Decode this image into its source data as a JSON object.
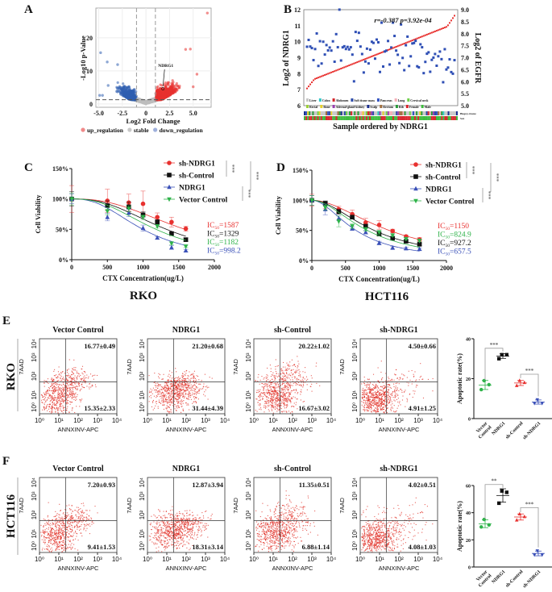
{
  "panel_labels": {
    "A": "A",
    "B": "B",
    "C": "C",
    "D": "D",
    "E": "E",
    "F": "F"
  },
  "row_labels": {
    "E": "RKO",
    "F": "HCT116"
  },
  "chart_data": [
    {
      "type": "scatter",
      "panel": "A",
      "xlabel": "Log2 Fold Change",
      "ylabel": "-Log10 p-Value",
      "xlim": [
        -5.3,
        6.9
      ],
      "ylim": [
        -1,
        29
      ],
      "xticks": [
        -5,
        -2.5,
        0,
        2.5,
        5
      ],
      "xtick_labels": [
        "-5.0",
        "-2.5",
        "0",
        "2.5",
        "5.0"
      ],
      "yticks": [
        0,
        10,
        20
      ],
      "ytick_labels": [
        "0",
        "10",
        "20"
      ],
      "grid": true,
      "thresholds": {
        "log2fc": [
          -1,
          1
        ],
        "neg_log10_p": 1.3
      },
      "annotation": {
        "label": "NDRG1",
        "x": 1.8,
        "y": 4.6
      },
      "legend": [
        {
          "label": "up_regulation",
          "color": "#f08a8a"
        },
        {
          "label": "stable",
          "color": "#c8c8c8"
        },
        {
          "label": "down_regulation",
          "color": "#9fb0dc"
        }
      ],
      "legend_placement": "bottom",
      "series_colors": {
        "up": "#e8312f",
        "stable": "#bdbdbd",
        "down": "#2f5fb0"
      },
      "outlier_points": [
        [
          6.5,
          27.5
        ],
        [
          4.7,
          16.6
        ],
        [
          4.2,
          16.5
        ],
        [
          5.4,
          9
        ],
        [
          5.0,
          5.2
        ],
        [
          -4.8,
          15.5
        ],
        [
          -4.1,
          12.7
        ],
        [
          -3.0,
          11.9
        ],
        [
          -4.6,
          2.6
        ],
        [
          -4.9,
          2.6
        ],
        [
          -4.0,
          5.6
        ]
      ]
    },
    {
      "type": "scatter",
      "panel": "B",
      "xlabel": "Sample ordered by NDRG1",
      "ylabel_left": "Log2 of NDRG1",
      "ylabel_right": "Log2 of EGFR",
      "ylim_left": [
        6,
        12
      ],
      "ylim_right": [
        5,
        9
      ],
      "yticks_left": [
        "6",
        "7",
        "8",
        "9",
        "10",
        "11",
        "12"
      ],
      "yticks_right": [
        "5.0",
        "5.5",
        "6.0",
        "6.5",
        "7.0",
        "7.5",
        "8.0",
        "8.5",
        "9.0"
      ],
      "annotation": "r=-0.387 p=3.92e-04",
      "series_colors": {
        "NDRG1": "#e8312f",
        "EGFR": "#2f4fb5"
      },
      "ndrg1_range": [
        6.9,
        11.7
      ],
      "track_labels": [
        "Biopsy-tissue",
        "Sex"
      ],
      "legend": [
        {
          "label": "Liver",
          "color": "#c8c8c8"
        },
        {
          "label": "Colon",
          "color": "#35c6c6"
        },
        {
          "label": "Abdomen",
          "color": "#d4262c"
        },
        {
          "label": "Soft tissue mass",
          "color": "#2b4aa8"
        },
        {
          "label": "Pancreas",
          "color": "#3555c0"
        },
        {
          "label": "Lung",
          "color": "#f4b0b8"
        },
        {
          "label": "Cervical neck",
          "color": "#6fd04a"
        },
        {
          "label": "Rectal",
          "color": "#9ccf3a"
        },
        {
          "label": "Bone",
          "color": "#e6d02a"
        },
        {
          "label": "Adrenal-gland-kidney",
          "color": "#9a3fb0"
        },
        {
          "label": "Scalp",
          "color": "#1c2f8f"
        },
        {
          "label": "Rectum",
          "color": "#a07040"
        },
        {
          "label": "Rib",
          "color": "#2a9a3a"
        },
        {
          "label": "Female",
          "color": "#d9262c"
        },
        {
          "label": "Male",
          "color": "#3dbb3d"
        }
      ]
    },
    {
      "type": "line",
      "panel": "C",
      "title": "RKO",
      "xlabel": "CTX Concentration(ug/L)",
      "ylabel": "Cell Viability",
      "xlim": [
        0,
        2000
      ],
      "ylim": [
        0,
        150
      ],
      "xticks": [
        "0",
        "500",
        "1000",
        "1500",
        "2000"
      ],
      "yticks": [
        "0%",
        "50%",
        "100%",
        "150%"
      ],
      "x": [
        0,
        500,
        800,
        1000,
        1200,
        1400,
        1600
      ],
      "series": [
        {
          "name": "sh-NDRG1",
          "color": "#e8312f",
          "marker": "circle",
          "values": [
            100,
            97,
            94,
            92,
            70,
            62,
            51
          ],
          "errors": [
            22,
            19,
            14,
            21,
            7,
            8,
            4
          ],
          "ic50": "1587"
        },
        {
          "name": "sh-Control",
          "color": "#111111",
          "marker": "square",
          "values": [
            100,
            89,
            87,
            74,
            62,
            43,
            33
          ],
          "errors": [
            12,
            8,
            8,
            5,
            4,
            2,
            3
          ],
          "ic50": "1329"
        },
        {
          "name": "NDRG1",
          "color": "#3a50b8",
          "marker": "triangle-up",
          "values": [
            100,
            70,
            77,
            52,
            36,
            20,
            15
          ],
          "errors": [
            8,
            6,
            6,
            5,
            2,
            3,
            2
          ],
          "ic50": "998.2"
        },
        {
          "name": "Vector Control",
          "color": "#2fb34a",
          "marker": "triangle-down",
          "values": [
            100,
            80,
            84,
            70,
            55,
            27,
            22
          ],
          "errors": [
            10,
            6,
            5,
            4,
            3,
            2,
            2
          ],
          "ic50": "1182"
        }
      ],
      "ic50_order": [
        0,
        1,
        3,
        2
      ],
      "ic50_prefix": "IC",
      "ic50_sub": "50",
      "significance": [
        {
          "pair": [
            "sh-NDRG1",
            "sh-Control"
          ],
          "label": "***"
        },
        {
          "pair": [
            "NDRG1",
            "Vector Control"
          ],
          "label": "***"
        },
        {
          "pair": [
            "sh groups",
            "overexpression groups"
          ],
          "label": "***"
        }
      ],
      "legend_placement": "top-right"
    },
    {
      "type": "line",
      "panel": "D",
      "title": "HCT116",
      "xlabel": "CTX Concentration(ug/L)",
      "ylabel": "Cell Viability",
      "xlim": [
        0,
        2000
      ],
      "ylim": [
        0,
        150
      ],
      "xticks": [
        "0",
        "500",
        "1000",
        "1500",
        "2000"
      ],
      "yticks": [
        "0%",
        "50%",
        "100%",
        "150%"
      ],
      "x": [
        0,
        200,
        400,
        600,
        800,
        1000,
        1200,
        1400,
        1600
      ],
      "series": [
        {
          "name": "sh-NDRG1",
          "color": "#e8312f",
          "marker": "circle",
          "values": [
            100,
            92,
            85,
            77,
            63,
            59,
            49,
            40,
            35
          ],
          "errors": [
            10,
            6,
            5,
            7,
            7,
            7,
            3,
            2,
            3
          ],
          "ic50": "1150"
        },
        {
          "name": "sh-Control",
          "color": "#111111",
          "marker": "square",
          "values": [
            100,
            95,
            81,
            72,
            57,
            44,
            37,
            32,
            27
          ],
          "errors": [
            8,
            4,
            4,
            3,
            3,
            3,
            3,
            2,
            2
          ],
          "ic50": "927.2"
        },
        {
          "name": "NDRG1",
          "color": "#3a50b8",
          "marker": "triangle-up",
          "values": [
            100,
            85,
            70,
            53,
            47,
            29,
            21,
            20,
            19
          ],
          "errors": [
            8,
            9,
            4,
            3,
            3,
            3,
            2,
            2,
            2
          ],
          "ic50": "657.5"
        },
        {
          "name": "Vector Control",
          "color": "#2fb34a",
          "marker": "triangle-down",
          "values": [
            100,
            88,
            65,
            57,
            52,
            47,
            42,
            36,
            33
          ],
          "errors": [
            8,
            4,
            9,
            4,
            3,
            3,
            2,
            2,
            2
          ],
          "ic50": "824.9"
        }
      ],
      "ic50_order": [
        0,
        3,
        1,
        2
      ],
      "ic50_prefix": "IC",
      "ic50_sub": "50",
      "significance": [
        {
          "pair": [
            "sh-NDRG1",
            "sh-Control"
          ],
          "label": "***"
        },
        {
          "pair": [
            "NDRG1",
            "Vector Control"
          ],
          "label": "***"
        },
        {
          "pair": [
            "sh groups",
            "overexpression groups"
          ],
          "label": "***"
        }
      ],
      "legend_placement": "top-right"
    },
    {
      "type": "scatter",
      "panel": "E",
      "kind": "flow-cytometry",
      "xlabel": "ANNXINV-APC",
      "ylabel": "7AAD",
      "ticks": [
        "10⁰",
        "10¹",
        "10²",
        "10³",
        "10⁴"
      ],
      "plots": [
        {
          "title": "Vector Control",
          "upper_right": "16.77±0.49",
          "lower_right": "15.35±2.33"
        },
        {
          "title": "NDRG1",
          "upper_right": "21.20±0.68",
          "lower_right": "31.44±4.39"
        },
        {
          "title": "sh-Control",
          "upper_right": "20.22±1.02",
          "lower_right": "16.67±3.02"
        },
        {
          "title": "sh-NDRG1",
          "upper_right": "4.50±0.66",
          "lower_right": "4.91±1.25"
        }
      ]
    },
    {
      "type": "scatter",
      "panel": "E",
      "kind": "dot-plot",
      "ylabel": "Apoptotic rate(%)",
      "ylim": [
        0,
        40
      ],
      "yticks": [
        "0",
        "20",
        "40"
      ],
      "categories": [
        "Vector Control",
        "NDRG1",
        "sh-Control",
        "sh-NDRG1"
      ],
      "category_labels": [
        [
          "Vector",
          "Control"
        ],
        [
          "NDRG1"
        ],
        [
          "sh-Control"
        ],
        [
          "sh-NDRG1"
        ]
      ],
      "colors": [
        "#2fb34a",
        "#111111",
        "#e8312f",
        "#3a50b8"
      ],
      "markers": [
        "circle",
        "square",
        "triangle-up",
        "triangle-down"
      ],
      "values": [
        [
          19,
          17,
          14.5
        ],
        [
          32,
          32,
          30
        ],
        [
          19,
          18,
          16.5
        ],
        [
          9.5,
          7.7,
          7.7
        ]
      ],
      "significance": [
        {
          "pair": [
            0,
            1
          ],
          "label": "***"
        },
        {
          "pair": [
            2,
            3
          ],
          "label": "***"
        }
      ]
    },
    {
      "type": "scatter",
      "panel": "F",
      "kind": "flow-cytometry",
      "xlabel": "ANNXINV-APC",
      "ylabel": "7AAD",
      "ticks": [
        "10⁰",
        "10¹",
        "10²",
        "10³",
        "10⁴"
      ],
      "plots": [
        {
          "title": "Vector Control",
          "upper_right": "7.20±0.93",
          "lower_right": "9.41±1.53"
        },
        {
          "title": "NDRG1",
          "upper_right": "12.87±3.94",
          "lower_right": "18.31±3.14"
        },
        {
          "title": "sh-Control",
          "upper_right": "11.35±0.51",
          "lower_right": "6.88±1.14"
        },
        {
          "title": "sh-NDRG1",
          "upper_right": "4.02±0.51",
          "lower_right": "4.08±1.03"
        }
      ]
    },
    {
      "type": "scatter",
      "panel": "F",
      "kind": "dot-plot",
      "ylabel": "Apoptotic rate(%)",
      "ylim": [
        0,
        60
      ],
      "yticks": [
        "0",
        "20",
        "40",
        "60"
      ],
      "categories": [
        "Vector Control",
        "NDRG1",
        "sh-Control",
        "sh-NDRG1"
      ],
      "category_labels": [
        [
          "Vector",
          "Control"
        ],
        [
          "NDRG1"
        ],
        [
          "sh-Control"
        ],
        [
          "sh-NDRG1"
        ]
      ],
      "colors": [
        "#2fb34a",
        "#111111",
        "#e8312f",
        "#3a50b8"
      ],
      "markers": [
        "circle",
        "square",
        "triangle-up",
        "triangle-down"
      ],
      "values": [
        [
          35,
          31,
          29.5
        ],
        [
          56,
          55,
          47
        ],
        [
          39,
          37,
          34.5
        ],
        [
          12,
          9,
          9
        ]
      ],
      "significance": [
        {
          "pair": [
            0,
            1
          ],
          "label": "**"
        },
        {
          "pair": [
            2,
            3
          ],
          "label": "***"
        }
      ]
    }
  ]
}
